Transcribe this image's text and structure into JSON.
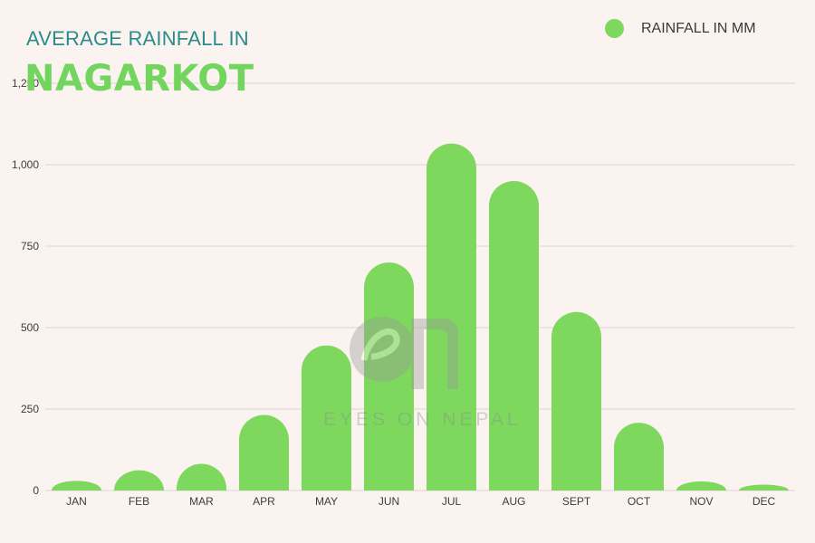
{
  "title": {
    "line1": "AVERAGE RAINFALL IN",
    "line2": "NAGARKOT"
  },
  "legend": {
    "label": "RAINFALL IN MM",
    "color": "#7ed85e"
  },
  "watermark": {
    "text": "EYES ON NEPAL"
  },
  "colors": {
    "bar": "#7ed85e",
    "title_teal": "#2a8c8c",
    "title_green": "#72d55e",
    "background": "#fbf3f0"
  },
  "chart_data": {
    "type": "bar",
    "categories": [
      "JAN",
      "FEB",
      "MAR",
      "APR",
      "MAY",
      "JUN",
      "JUL",
      "AUG",
      "SEPT",
      "OCT",
      "NOV",
      "DEC"
    ],
    "series": [
      {
        "name": "RAINFALL IN MM",
        "values": [
          30,
          62,
          82,
          232,
          445,
          700,
          1065,
          950,
          548,
          208,
          28,
          18
        ]
      }
    ],
    "ylim": [
      0,
      1250
    ],
    "yticks": [
      0,
      250,
      500,
      750,
      1000,
      1250
    ],
    "ytick_labels": [
      "0",
      "250",
      "500",
      "750",
      "1,000",
      "1,250"
    ],
    "grid": true,
    "legend_position": "top-right"
  }
}
